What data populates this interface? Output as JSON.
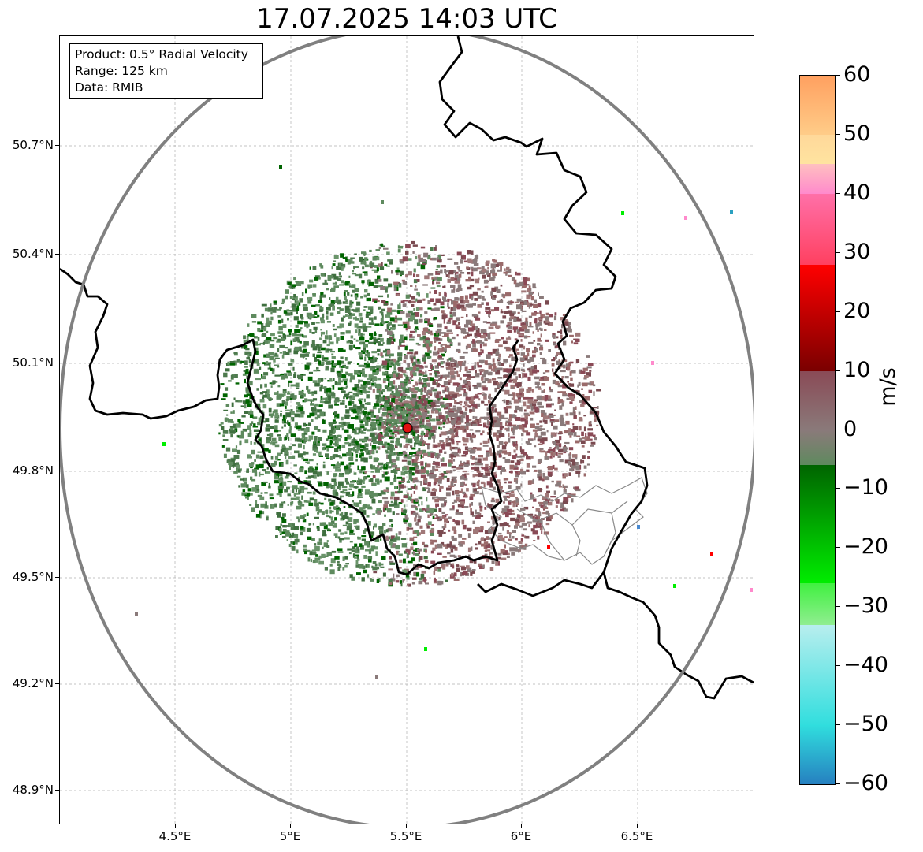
{
  "title": "17.07.2025 14:03 UTC",
  "info": {
    "product": "Product: 0.5° Radial Velocity",
    "range": "Range: 125 km",
    "source": "Data: RMIB"
  },
  "axes": {
    "lat_labels": [
      "50.7°N",
      "50.4°N",
      "50.1°N",
      "49.8°N",
      "49.5°N",
      "49.2°N",
      "48.9°N"
    ],
    "lon_labels": [
      "4.5°E",
      "5°E",
      "5.5°E",
      "6°E",
      "6.5°E"
    ]
  },
  "colorbar": {
    "unit": "m/s",
    "min": -60,
    "max": 60,
    "ticks": [
      "60",
      "50",
      "40",
      "30",
      "20",
      "10",
      "0",
      "−10",
      "−20",
      "−30",
      "−40",
      "−50",
      "−60"
    ],
    "colors": {
      "blue_end": "#2680c0",
      "cyan": "#30dede",
      "light_cyan": "#b8eeee",
      "light_green": "#90ee90",
      "green": "#00ee00",
      "dark_green": "#006400",
      "zero_green": "#5e8a5e",
      "zero_gray": "#8a7a7a",
      "mauve": "#8a4a56",
      "dark_red": "#7a0000",
      "red": "#ff0000",
      "pink": "#ff8acc",
      "peach": "#ffe4a0",
      "orange": "#ffa060"
    }
  },
  "radar": {
    "site_marker": "radar-site",
    "range_ring": "125 km"
  }
}
